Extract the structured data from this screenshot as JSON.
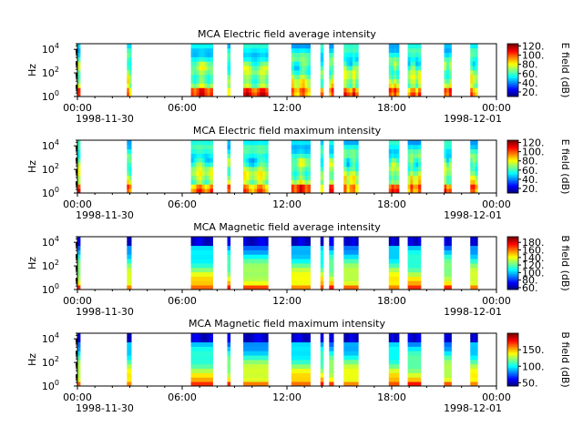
{
  "chart_data": [
    {
      "type": "heatmap",
      "title": "MCA  Electric field average intensity",
      "ylabel": "Hz",
      "yscale": "log",
      "yticks": [
        {
          "base": "10",
          "exp": "0"
        },
        {
          "base": "10",
          "exp": "2"
        },
        {
          "base": "10",
          "exp": "4"
        }
      ],
      "ylim_hz": [
        1,
        30000
      ],
      "x_start": "1998-11-30T00:00",
      "x_end": "1998-12-01T00:00",
      "xticks": [
        "00:00",
        "06:00",
        "12:00",
        "18:00",
        "00:00"
      ],
      "xdate_left": "1998-11-30",
      "xdate_right": "1998-12-01",
      "colorbar": {
        "label": "E field (dB)",
        "ticks": [
          "20.",
          "40.",
          "60.",
          "80.",
          "100.",
          "120."
        ],
        "range": [
          10,
          125
        ]
      },
      "data_intervals": [
        [
          "00:00",
          "00:05"
        ],
        [
          "02:50",
          "03:05"
        ],
        [
          "06:30",
          "07:45"
        ],
        [
          "08:35",
          "08:45"
        ],
        [
          "09:30",
          "10:55"
        ],
        [
          "12:15",
          "13:20"
        ],
        [
          "13:55",
          "14:05"
        ],
        [
          "14:25",
          "14:40"
        ],
        [
          "15:15",
          "16:05"
        ],
        [
          "17:50",
          "18:25"
        ],
        [
          "18:55",
          "19:40"
        ],
        [
          "21:00",
          "21:25"
        ],
        [
          "22:30",
          "22:55"
        ]
      ],
      "colormap": "jet",
      "profile": "electric"
    },
    {
      "type": "heatmap",
      "title": "MCA  Electric field maximum intensity",
      "ylabel": "Hz",
      "yscale": "log",
      "yticks": [
        {
          "base": "10",
          "exp": "0"
        },
        {
          "base": "10",
          "exp": "2"
        },
        {
          "base": "10",
          "exp": "4"
        }
      ],
      "ylim_hz": [
        1,
        30000
      ],
      "x_start": "1998-11-30T00:00",
      "x_end": "1998-12-01T00:00",
      "xticks": [
        "00:00",
        "06:00",
        "12:00",
        "18:00",
        "00:00"
      ],
      "xdate_left": "1998-11-30",
      "xdate_right": "1998-12-01",
      "colorbar": {
        "label": "E field (dB)",
        "ticks": [
          "20.",
          "40.",
          "60.",
          "80.",
          "100.",
          "120."
        ],
        "range": [
          10,
          125
        ]
      },
      "data_intervals": [
        [
          "00:00",
          "00:05"
        ],
        [
          "02:50",
          "03:05"
        ],
        [
          "06:30",
          "07:45"
        ],
        [
          "08:35",
          "08:45"
        ],
        [
          "09:30",
          "10:55"
        ],
        [
          "12:15",
          "13:20"
        ],
        [
          "13:55",
          "14:05"
        ],
        [
          "14:25",
          "14:40"
        ],
        [
          "15:15",
          "16:05"
        ],
        [
          "17:50",
          "18:25"
        ],
        [
          "18:55",
          "19:40"
        ],
        [
          "21:00",
          "21:25"
        ],
        [
          "22:30",
          "22:55"
        ]
      ],
      "colormap": "jet",
      "profile": "electric"
    },
    {
      "type": "heatmap",
      "title": "MCA  Magnetic field average intensity",
      "ylabel": "Hz",
      "yscale": "log",
      "yticks": [
        {
          "base": "10",
          "exp": "0"
        },
        {
          "base": "10",
          "exp": "2"
        },
        {
          "base": "10",
          "exp": "4"
        }
      ],
      "ylim_hz": [
        1,
        30000
      ],
      "x_start": "1998-11-30T00:00",
      "x_end": "1998-12-01T00:00",
      "xticks": [
        "00:00",
        "06:00",
        "12:00",
        "18:00",
        "00:00"
      ],
      "xdate_left": "1998-11-30",
      "xdate_right": "1998-12-01",
      "colorbar": {
        "label": "B field (dB)",
        "ticks": [
          "60.",
          "80.",
          "100.",
          "120.",
          "140.",
          "160.",
          "180."
        ],
        "range": [
          55,
          195
        ]
      },
      "data_intervals": [
        [
          "00:00",
          "00:05"
        ],
        [
          "02:50",
          "03:05"
        ],
        [
          "06:30",
          "07:45"
        ],
        [
          "08:35",
          "08:45"
        ],
        [
          "09:30",
          "10:55"
        ],
        [
          "12:15",
          "13:20"
        ],
        [
          "13:55",
          "14:05"
        ],
        [
          "14:25",
          "14:40"
        ],
        [
          "15:15",
          "16:05"
        ],
        [
          "17:50",
          "18:25"
        ],
        [
          "18:55",
          "19:40"
        ],
        [
          "21:00",
          "21:25"
        ],
        [
          "22:30",
          "22:55"
        ]
      ],
      "colormap": "jet",
      "profile": "magnetic"
    },
    {
      "type": "heatmap",
      "title": "MCA  Magnetic field maximum intensity",
      "ylabel": "Hz",
      "yscale": "log",
      "yticks": [
        {
          "base": "10",
          "exp": "0"
        },
        {
          "base": "10",
          "exp": "2"
        },
        {
          "base": "10",
          "exp": "4"
        }
      ],
      "ylim_hz": [
        1,
        30000
      ],
      "x_start": "1998-11-30T00:00",
      "x_end": "1998-12-01T00:00",
      "xticks": [
        "00:00",
        "06:00",
        "12:00",
        "18:00",
        "00:00"
      ],
      "xdate_left": "1998-11-30",
      "xdate_right": "1998-12-01",
      "colorbar": {
        "label": "B field (dB)",
        "ticks": [
          "50.",
          "100.",
          "150."
        ],
        "range": [
          40,
          200
        ]
      },
      "data_intervals": [
        [
          "00:00",
          "00:05"
        ],
        [
          "02:50",
          "03:05"
        ],
        [
          "06:30",
          "07:45"
        ],
        [
          "08:35",
          "08:45"
        ],
        [
          "09:30",
          "10:55"
        ],
        [
          "12:15",
          "13:20"
        ],
        [
          "13:55",
          "14:05"
        ],
        [
          "14:25",
          "14:40"
        ],
        [
          "15:15",
          "16:05"
        ],
        [
          "17:50",
          "18:25"
        ],
        [
          "18:55",
          "19:40"
        ],
        [
          "21:00",
          "21:25"
        ],
        [
          "22:30",
          "22:55"
        ]
      ],
      "colormap": "jet",
      "profile": "magnetic"
    }
  ]
}
